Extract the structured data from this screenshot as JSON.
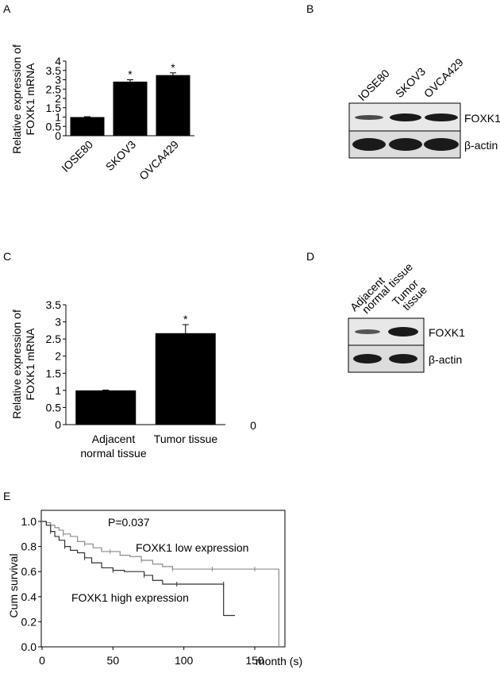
{
  "panels": {
    "a": {
      "letter": "A",
      "ylabel_line1": "Relative expression of",
      "ylabel_line2": "FOXK1 mRNA"
    },
    "b": {
      "letter": "B",
      "lanes": [
        "IOSE80",
        "SKOV3",
        "OVCA429"
      ],
      "bands": [
        "FOXK1",
        "β-actin"
      ]
    },
    "c": {
      "letter": "C",
      "ylabel_line1": "Relative expression of",
      "ylabel_line2": "FOXK1 mRNA",
      "cat1_line1": "Adjacent",
      "cat1_line2": "normal tissue",
      "cat2": "Tumor tissue",
      "stray_label": "0"
    },
    "d": {
      "letter": "D",
      "lane1_line1": "Adjacent",
      "lane1_line2": "normal tissue",
      "lane2_line1": "Tumor",
      "lane2_line2": "tissue",
      "bands": [
        "FOXK1",
        "β-actin"
      ]
    },
    "e": {
      "letter": "E",
      "pvalue": "P=0.037",
      "low_label": "FOXK1 low expression",
      "high_label": "FOXK1 high expression",
      "ylabel": "Cum survival",
      "xlabel": "month (s)"
    }
  },
  "chart_data": [
    {
      "type": "bar",
      "categories": [
        "IOSE80",
        "SKOV3",
        "OVCA429"
      ],
      "values": [
        1.0,
        2.9,
        3.25
      ],
      "errors": [
        0.02,
        0.1,
        0.12
      ],
      "significance": [
        "",
        "*",
        "*"
      ],
      "ylim": [
        0,
        4
      ],
      "yticks": [
        0,
        0.5,
        1,
        1.5,
        2,
        2.5,
        3,
        3.5,
        4
      ],
      "ytick_labels": [
        "0",
        "0.5",
        "1",
        "1.5",
        "2",
        "2.5",
        "3",
        "3.5",
        "4"
      ],
      "grid": false,
      "bar_color": "#000000"
    },
    {
      "type": "bar",
      "categories": [
        "Adjacent normal tissue",
        "Tumor tissue"
      ],
      "values": [
        1.0,
        2.67
      ],
      "errors": [
        0.01,
        0.25
      ],
      "significance": [
        "",
        "*"
      ],
      "ylim": [
        0,
        3.5
      ],
      "yticks": [
        0,
        0.5,
        1,
        1.5,
        2,
        2.5,
        3,
        3.5
      ],
      "ytick_labels": [
        "0",
        "0.5",
        "1",
        "1.5",
        "2",
        "2.5",
        "3",
        "3.5"
      ],
      "grid": false,
      "bar_color": "#000000"
    },
    {
      "type": "line",
      "xlim": [
        0,
        170
      ],
      "ylim": [
        0,
        1.0
      ],
      "xticks": [
        0,
        50,
        100,
        150
      ],
      "xtick_labels": [
        "0",
        "50",
        "100",
        "150"
      ],
      "yticks": [
        0,
        0.2,
        0.4,
        0.6,
        0.8,
        1.0
      ],
      "ytick_labels": [
        "0.0",
        "0.2",
        "0.4",
        "0.6",
        "0.8",
        "1.0"
      ],
      "grid": false,
      "series": [
        {
          "name": "FOXK1 low expression",
          "color": "#8c8c8c",
          "x": [
            0,
            3,
            6,
            9,
            12,
            15,
            20,
            25,
            30,
            36,
            42,
            48,
            55,
            62,
            70,
            78,
            85,
            92,
            100,
            110,
            120,
            130,
            140,
            150,
            167,
            167
          ],
          "y": [
            1.0,
            0.99,
            0.97,
            0.95,
            0.93,
            0.9,
            0.88,
            0.84,
            0.82,
            0.79,
            0.76,
            0.76,
            0.73,
            0.72,
            0.69,
            0.66,
            0.64,
            0.62,
            0.62,
            0.62,
            0.62,
            0.62,
            0.62,
            0.62,
            0.62,
            0.0
          ]
        },
        {
          "name": "FOXK1 high expression",
          "color": "#333333",
          "x": [
            0,
            3,
            6,
            9,
            12,
            16,
            20,
            25,
            30,
            35,
            42,
            50,
            58,
            65,
            72,
            78,
            85,
            95,
            105,
            120,
            128,
            128,
            136
          ],
          "y": [
            1.0,
            0.97,
            0.92,
            0.88,
            0.85,
            0.8,
            0.77,
            0.75,
            0.71,
            0.67,
            0.63,
            0.61,
            0.6,
            0.6,
            0.57,
            0.53,
            0.5,
            0.5,
            0.5,
            0.5,
            0.5,
            0.25,
            0.25
          ]
        }
      ]
    }
  ]
}
